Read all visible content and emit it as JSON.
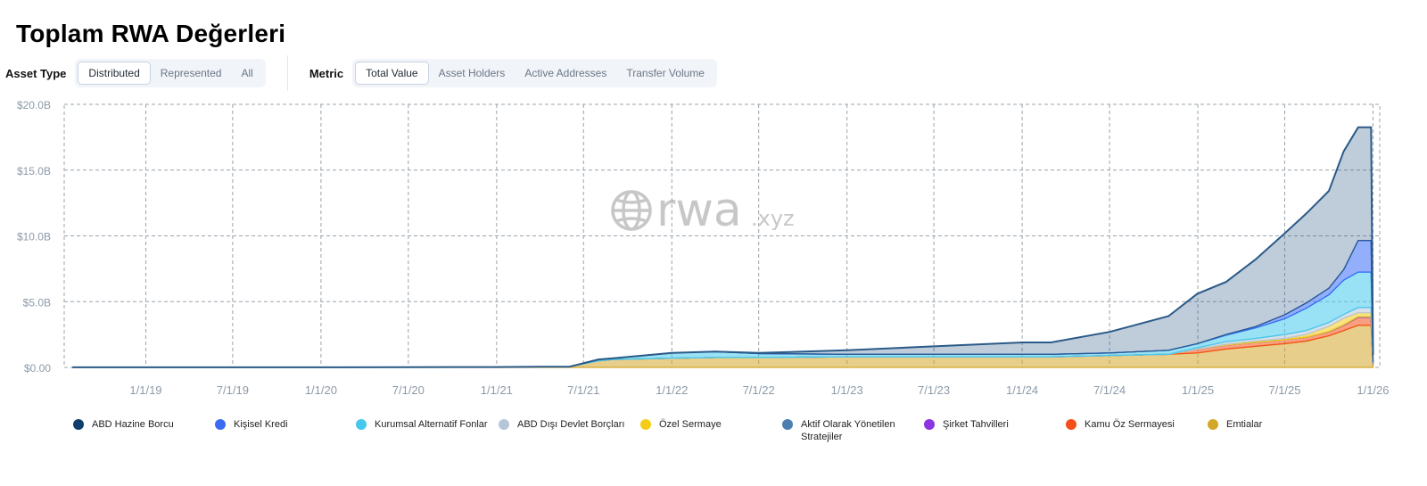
{
  "page": {
    "title": "Toplam RWA Değerleri"
  },
  "controls": {
    "asset_type": {
      "label": "Asset Type",
      "options": [
        "Distributed",
        "Represented",
        "All"
      ],
      "selected": "Distributed"
    },
    "metric": {
      "label": "Metric",
      "options": [
        "Total Value",
        "Asset Holders",
        "Active Addresses",
        "Transfer Volume"
      ],
      "selected": "Total Value"
    }
  },
  "watermark": {
    "text_main": "rwa",
    "text_suffix": ".xyz",
    "icon": "globe-icon"
  },
  "chart_data": {
    "type": "area",
    "stacked": true,
    "x_tick_labels": [
      "1/1/19",
      "7/1/19",
      "1/1/20",
      "7/1/20",
      "1/1/21",
      "7/1/21",
      "1/1/22",
      "7/1/22",
      "1/1/23",
      "7/1/23",
      "1/1/24",
      "7/1/24",
      "1/1/25",
      "7/1/25",
      "1/1/26"
    ],
    "y_tick_labels": [
      "$0.00",
      "$5.0B",
      "$10.0B",
      "$15.0B",
      "$20.0B"
    ],
    "y_unit": "billions USD",
    "ylim": [
      0,
      20
    ],
    "xlim": [
      "2018-07-15",
      "2026-01-15"
    ],
    "grid": true,
    "legend_position": "bottom",
    "x": [
      "2018-08-01",
      "2019-01-01",
      "2019-07-01",
      "2020-01-01",
      "2020-07-01",
      "2021-01-01",
      "2021-04-01",
      "2021-06-01",
      "2021-08-01",
      "2021-09-01",
      "2022-01-01",
      "2022-04-01",
      "2022-07-01",
      "2023-01-01",
      "2023-07-01",
      "2024-01-01",
      "2024-03-01",
      "2024-07-01",
      "2024-11-01",
      "2024-12-31",
      "2025-03-01",
      "2025-05-01",
      "2025-07-01",
      "2025-08-15",
      "2025-10-01",
      "2025-11-01",
      "2025-12-01",
      "2025-12-28",
      "2026-01-01"
    ],
    "series": [
      {
        "name": "Emtialar",
        "color": "#d4a62a",
        "values": [
          0.01,
          0.01,
          0.01,
          0.01,
          0.02,
          0.03,
          0.05,
          0.05,
          0.5,
          0.6,
          0.7,
          0.75,
          0.75,
          0.8,
          0.8,
          0.8,
          0.8,
          0.9,
          1.0,
          1.1,
          1.4,
          1.6,
          1.8,
          2.0,
          2.4,
          2.8,
          3.2,
          3.2,
          0.2
        ]
      },
      {
        "name": "Kamu Öz Sermayesi",
        "color": "#f5501a",
        "values": [
          0,
          0,
          0,
          0,
          0,
          0,
          0,
          0,
          0,
          0,
          0,
          0,
          0,
          0,
          0,
          0,
          0,
          0,
          0,
          0.3,
          0.3,
          0.3,
          0.3,
          0.3,
          0.3,
          0.4,
          0.6,
          0.6,
          0.1
        ]
      },
      {
        "name": "Şirket Tahvilleri",
        "color": "#8a35e0",
        "values": [
          0,
          0,
          0,
          0,
          0,
          0,
          0,
          0,
          0,
          0,
          0,
          0,
          0,
          0,
          0,
          0,
          0,
          0,
          0,
          0,
          0,
          0,
          0,
          0,
          0.02,
          0.03,
          0.05,
          0.05,
          0
        ]
      },
      {
        "name": "Aktif Olarak Yönetilen Stratejiler",
        "color": "#4c7fb0",
        "values": [
          0,
          0,
          0,
          0,
          0,
          0,
          0,
          0,
          0,
          0,
          0,
          0,
          0,
          0,
          0,
          0,
          0,
          0,
          0,
          0,
          0,
          0,
          0,
          0,
          0,
          0,
          0,
          0,
          0
        ]
      },
      {
        "name": "Özel Sermaye",
        "color": "#f7cc18",
        "values": [
          0,
          0,
          0,
          0,
          0,
          0,
          0,
          0,
          0,
          0,
          0,
          0,
          0,
          0,
          0,
          0,
          0,
          0,
          0,
          0,
          0.05,
          0.1,
          0.1,
          0.2,
          0.4,
          0.5,
          0.3,
          0.3,
          0
        ]
      },
      {
        "name": "ABD Dışı Devlet Borçları",
        "color": "#b6c6d9",
        "values": [
          0,
          0,
          0,
          0,
          0,
          0,
          0,
          0,
          0,
          0,
          0,
          0,
          0,
          0,
          0,
          0,
          0,
          0,
          0,
          0.1,
          0.2,
          0.2,
          0.3,
          0.3,
          0.3,
          0.3,
          0.4,
          0.4,
          0
        ]
      },
      {
        "name": "Kurumsal Alternatif Fonlar",
        "color": "#45c8ec",
        "values": [
          0,
          0,
          0,
          0,
          0,
          0,
          0,
          0,
          0.1,
          0.1,
          0.4,
          0.45,
          0.3,
          0.2,
          0.2,
          0.2,
          0.2,
          0.2,
          0.3,
          0.3,
          0.5,
          0.8,
          1.2,
          1.7,
          2.1,
          2.6,
          2.7,
          2.7,
          0.05
        ]
      },
      {
        "name": "Kişisel Kredi",
        "color": "#3b6bf5",
        "values": [
          0,
          0,
          0,
          0,
          0,
          0,
          0,
          0,
          0,
          0,
          0,
          0,
          0,
          0,
          0,
          0,
          0,
          0,
          0,
          0,
          0.05,
          0.1,
          0.3,
          0.4,
          0.5,
          0.8,
          2.4,
          2.4,
          0.1
        ]
      },
      {
        "name": "ABD Hazine Borcu",
        "color": "#2b5a88",
        "values": [
          0,
          0,
          0,
          0,
          0,
          0,
          0,
          0,
          0,
          0,
          0,
          0,
          0.05,
          0.3,
          0.6,
          0.9,
          0.9,
          1.6,
          2.6,
          3.8,
          4.0,
          5.1,
          6.2,
          6.8,
          7.4,
          9.0,
          8.6,
          8.6,
          0.5
        ]
      }
    ]
  },
  "legend": {
    "items": [
      {
        "label": "ABD Hazine Borcu",
        "color": "#0f3d6e"
      },
      {
        "label": "Kişisel Kredi",
        "color": "#3b6bf5"
      },
      {
        "label": "Kurumsal Alternatif Fonlar",
        "color": "#45c8ec"
      },
      {
        "label": "ABD Dışı Devlet Borçları",
        "color": "#b6c6d9"
      },
      {
        "label": "Özel Sermaye",
        "color": "#f7cc18"
      },
      {
        "label": "Aktif Olarak Yönetilen Stratejiler",
        "color": "#4c7fb0"
      },
      {
        "label": "Şirket Tahvilleri",
        "color": "#8a35e0"
      },
      {
        "label": "Kamu Öz Sermayesi",
        "color": "#f5501a"
      },
      {
        "label": "Emtialar",
        "color": "#d4a62a"
      }
    ]
  }
}
